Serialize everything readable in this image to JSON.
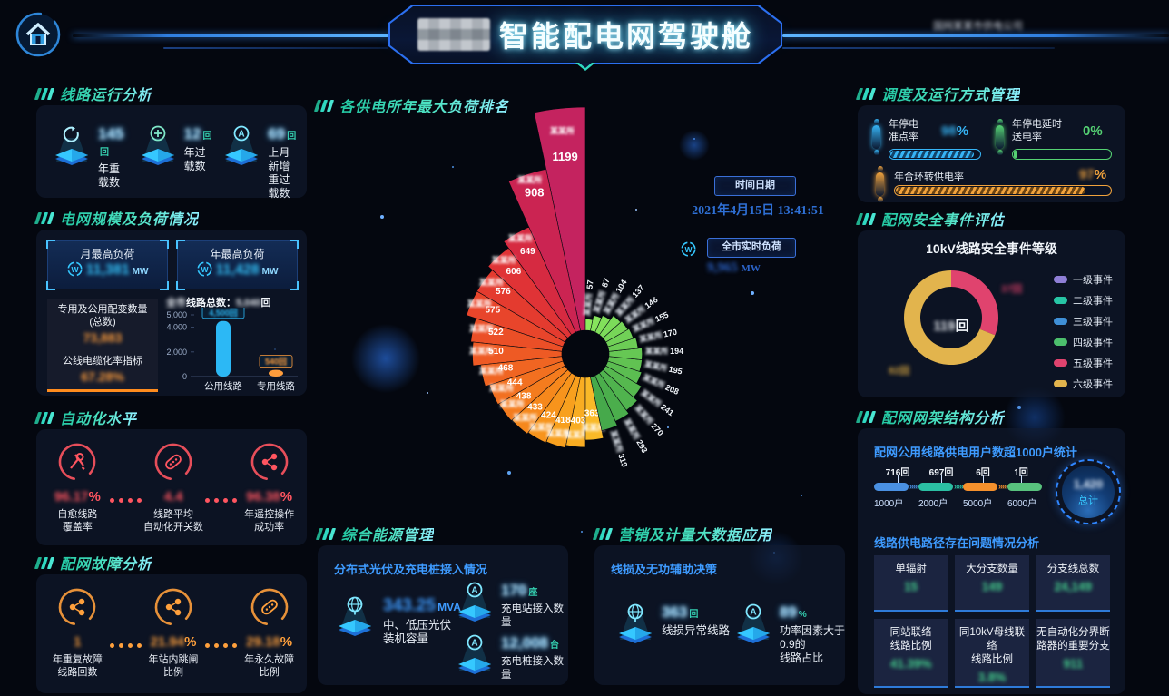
{
  "header": {
    "title_prefix_blurred": "某市",
    "title": "智能配电网驾驶舱",
    "corner_note_blurred": "国网某某市供电公司",
    "home_label": "主页"
  },
  "left": {
    "line_ops": {
      "title": "线路运行分析",
      "items": [
        {
          "icon": "refresh-icon",
          "value": "145",
          "unit": "回",
          "label": "年重载数",
          "label2": ""
        },
        {
          "icon": "overload-icon",
          "value": "12",
          "unit": "回",
          "label": "年过载数",
          "label2": ""
        },
        {
          "icon": "a-circle-icon",
          "value": "69",
          "unit": "回",
          "label": "上月新增",
          "label2": "重过载数"
        }
      ]
    },
    "grid_scale": {
      "title": "电网规模及负荷情况",
      "stats": [
        {
          "label": "月最高负荷",
          "value": "11,381",
          "unit": "MW"
        },
        {
          "label": "年最高负荷",
          "value": "11,428",
          "unit": "MW"
        }
      ],
      "boxes": [
        {
          "label": "专用及公用配变数量",
          "label2": "(总数)",
          "value": "73,883"
        },
        {
          "label": "公线电缆化率指标",
          "label2": "",
          "value": "67.28%"
        }
      ],
      "bar_title_prefix": "全市",
      "bar_title": "线路总数：",
      "bar_total": "5,040",
      "bar_total_unit": "回"
    },
    "automation": {
      "title": "自动化水平",
      "items": [
        {
          "icon": "tools-ring-icon",
          "value": "96.17",
          "unit": "%",
          "label": "自愈线路",
          "label2": "覆盖率"
        },
        {
          "icon": "switch-ring-icon",
          "value": "4.4",
          "unit": "",
          "label": "线路平均",
          "label2": "自动化开关数"
        },
        {
          "icon": "share-ring-icon",
          "value": "96.38",
          "unit": "%",
          "label": "年遥控操作",
          "label2": "成功率"
        }
      ]
    },
    "faults": {
      "title": "配网故障分析",
      "items": [
        {
          "icon": "share-ring-icon",
          "value": "1",
          "unit": "",
          "label": "年重复故障",
          "label2": "线路回数"
        },
        {
          "icon": "share-ring-icon",
          "value": "21.94",
          "unit": "%",
          "label": "年站内跳闸",
          "label2": "比例"
        },
        {
          "icon": "switch-ring-icon",
          "value": "29.18",
          "unit": "%",
          "label": "年永久故障",
          "label2": "比例"
        }
      ]
    }
  },
  "center": {
    "rose_title": "各供电所年最大负荷排名",
    "time_box_label": "时间日期",
    "datetime": "2021年4月15日 13:41:51",
    "realtime_label": "全市实时负荷",
    "realtime_value": "9,965",
    "realtime_unit": "MW",
    "energy": {
      "title": "综合能源管理",
      "subtitle": "分布式光伏及充电桩接入情况",
      "items": [
        {
          "icon": "globe-icon",
          "value": "343.25",
          "unit": "MVA",
          "label": "中、低压光伏",
          "label2": "装机容量"
        },
        {
          "icon": "a-circle-icon",
          "value": "170",
          "unit": "座",
          "label": "充电站接入数量",
          "label2": ""
        },
        {
          "icon": "a-circle-icon",
          "value": "12,008",
          "unit": "台",
          "label": "充电桩接入数量",
          "label2": ""
        }
      ]
    },
    "marketing": {
      "title": "营销及计量大数据应用",
      "subtitle": "线损及无功辅助决策",
      "items": [
        {
          "icon": "globe-icon",
          "value": "363",
          "unit": "回",
          "label": "线损异常线路",
          "label2": ""
        },
        {
          "icon": "a-circle-icon",
          "value": "89",
          "unit": "%",
          "label": "功率因素大于0.9的",
          "label2": "线路占比"
        }
      ]
    }
  },
  "right": {
    "dispatch": {
      "title": "调度及运行方式管理",
      "items": [
        {
          "label": "年停电",
          "label2": "准点率",
          "value": "98",
          "unit": "%",
          "pct": 92,
          "color": "#36b4f5"
        },
        {
          "label": "年停电延时",
          "label2": "送电率",
          "value": "0",
          "unit": "%",
          "pct": 4,
          "color": "#55d273"
        },
        {
          "label": "年合环转供电率",
          "label2": "",
          "value": "97",
          "unit": "%",
          "pct": 88,
          "color": "#f0a23c"
        }
      ]
    },
    "safety": {
      "title": "配网安全事件评估",
      "chart_title": "10kV线路安全事件等级",
      "center_value": "119",
      "center_unit": "回",
      "callout_pink": "37回",
      "callout_yellow": "82回",
      "legend": [
        {
          "label": "一级事件",
          "color": "#8f7fd6"
        },
        {
          "label": "二级事件",
          "color": "#27c5a5"
        },
        {
          "label": "三级事件",
          "color": "#3f8fd6"
        },
        {
          "label": "四级事件",
          "color": "#4cbf6c"
        },
        {
          "label": "五级事件",
          "color": "#e0436e"
        },
        {
          "label": "六级事件",
          "color": "#e2b44d"
        }
      ]
    },
    "structure": {
      "title": "配网网架结构分析",
      "sub1": "配网公用线路供电用户数超1000户统计",
      "sub2": "线路供电路径存在问题情况分析",
      "total_label": "总计",
      "total_value": "1,420",
      "cells": [
        {
          "label": "单辐射",
          "label2": "",
          "value": "15"
        },
        {
          "label": "大分支数量",
          "label2": "",
          "value": "149"
        },
        {
          "label": "分支线总数",
          "label2": "",
          "value": "24,149"
        },
        {
          "label": "同站联络",
          "label2": "线路比例",
          "value": "41.39%"
        },
        {
          "label": "同10kV母线联络",
          "label2": "线路比例",
          "value": "3.8%"
        },
        {
          "label": "无自动化分界断",
          "label2": "路器的重要分支",
          "value": "911"
        }
      ]
    }
  },
  "chart_data": [
    {
      "id": "rose",
      "type": "rose",
      "title": "各供电所年最大负荷排名",
      "values": [
        1199,
        908,
        649,
        606,
        576,
        575,
        522,
        510,
        468,
        444,
        438,
        433,
        424,
        418,
        403,
        363,
        319,
        293,
        270,
        241,
        208,
        195,
        194,
        170,
        155,
        146,
        137,
        104,
        87,
        57
      ],
      "label_blurred": "某某所",
      "colors": [
        "#c4235f",
        "#cb2452",
        "#d62a41",
        "#e03336",
        "#e43b2f",
        "#e8452b",
        "#eb4f27",
        "#ee5a24",
        "#f06522",
        "#f27020",
        "#f47c1e",
        "#f6881c",
        "#f7941c",
        "#f8a01e",
        "#f9ad22",
        "#f9b928",
        "#46a94b",
        "#4bae4c",
        "#50b34e",
        "#56b84f",
        "#5bbd51",
        "#61c252",
        "#66c754",
        "#6ccc55",
        "#71d157",
        "#77d658",
        "#7cdb5a",
        "#82e05b",
        "#87e55d",
        "#8dea5e"
      ]
    },
    {
      "id": "line_bar",
      "type": "bar",
      "categories": [
        "公用线路",
        "专用线路"
      ],
      "values": [
        4500,
        540
      ],
      "value_labels": [
        "4,500回",
        "540回"
      ],
      "colors": [
        "#2cb8f5",
        "#ff9d3c"
      ],
      "yticks": [
        0,
        2000,
        4000,
        5000
      ],
      "ylim": [
        0,
        5000
      ],
      "title": "全市线路总数：5,040回"
    },
    {
      "id": "safety_donut",
      "type": "pie",
      "labels": [
        "五级事件",
        "六级事件"
      ],
      "values": [
        37,
        82
      ],
      "colors": [
        "#e0436e",
        "#e2b44d"
      ],
      "title": "10kV线路安全事件等级",
      "center_label": "119回",
      "legend_position": "right"
    },
    {
      "id": "user_flow",
      "type": "table",
      "title": "配网公用线路供电用户数超1000户统计",
      "segments": [
        {
          "users": "1000户",
          "count": "716回",
          "color": "#4a90e2"
        },
        {
          "users": "2000户",
          "count": "697回",
          "color": "#2bbfa3"
        },
        {
          "users": "5000户",
          "count": "6回",
          "color": "#f5902c"
        },
        {
          "users": "6000户",
          "count": "1回",
          "color": "#58c27d"
        }
      ],
      "total": "1,420"
    }
  ]
}
